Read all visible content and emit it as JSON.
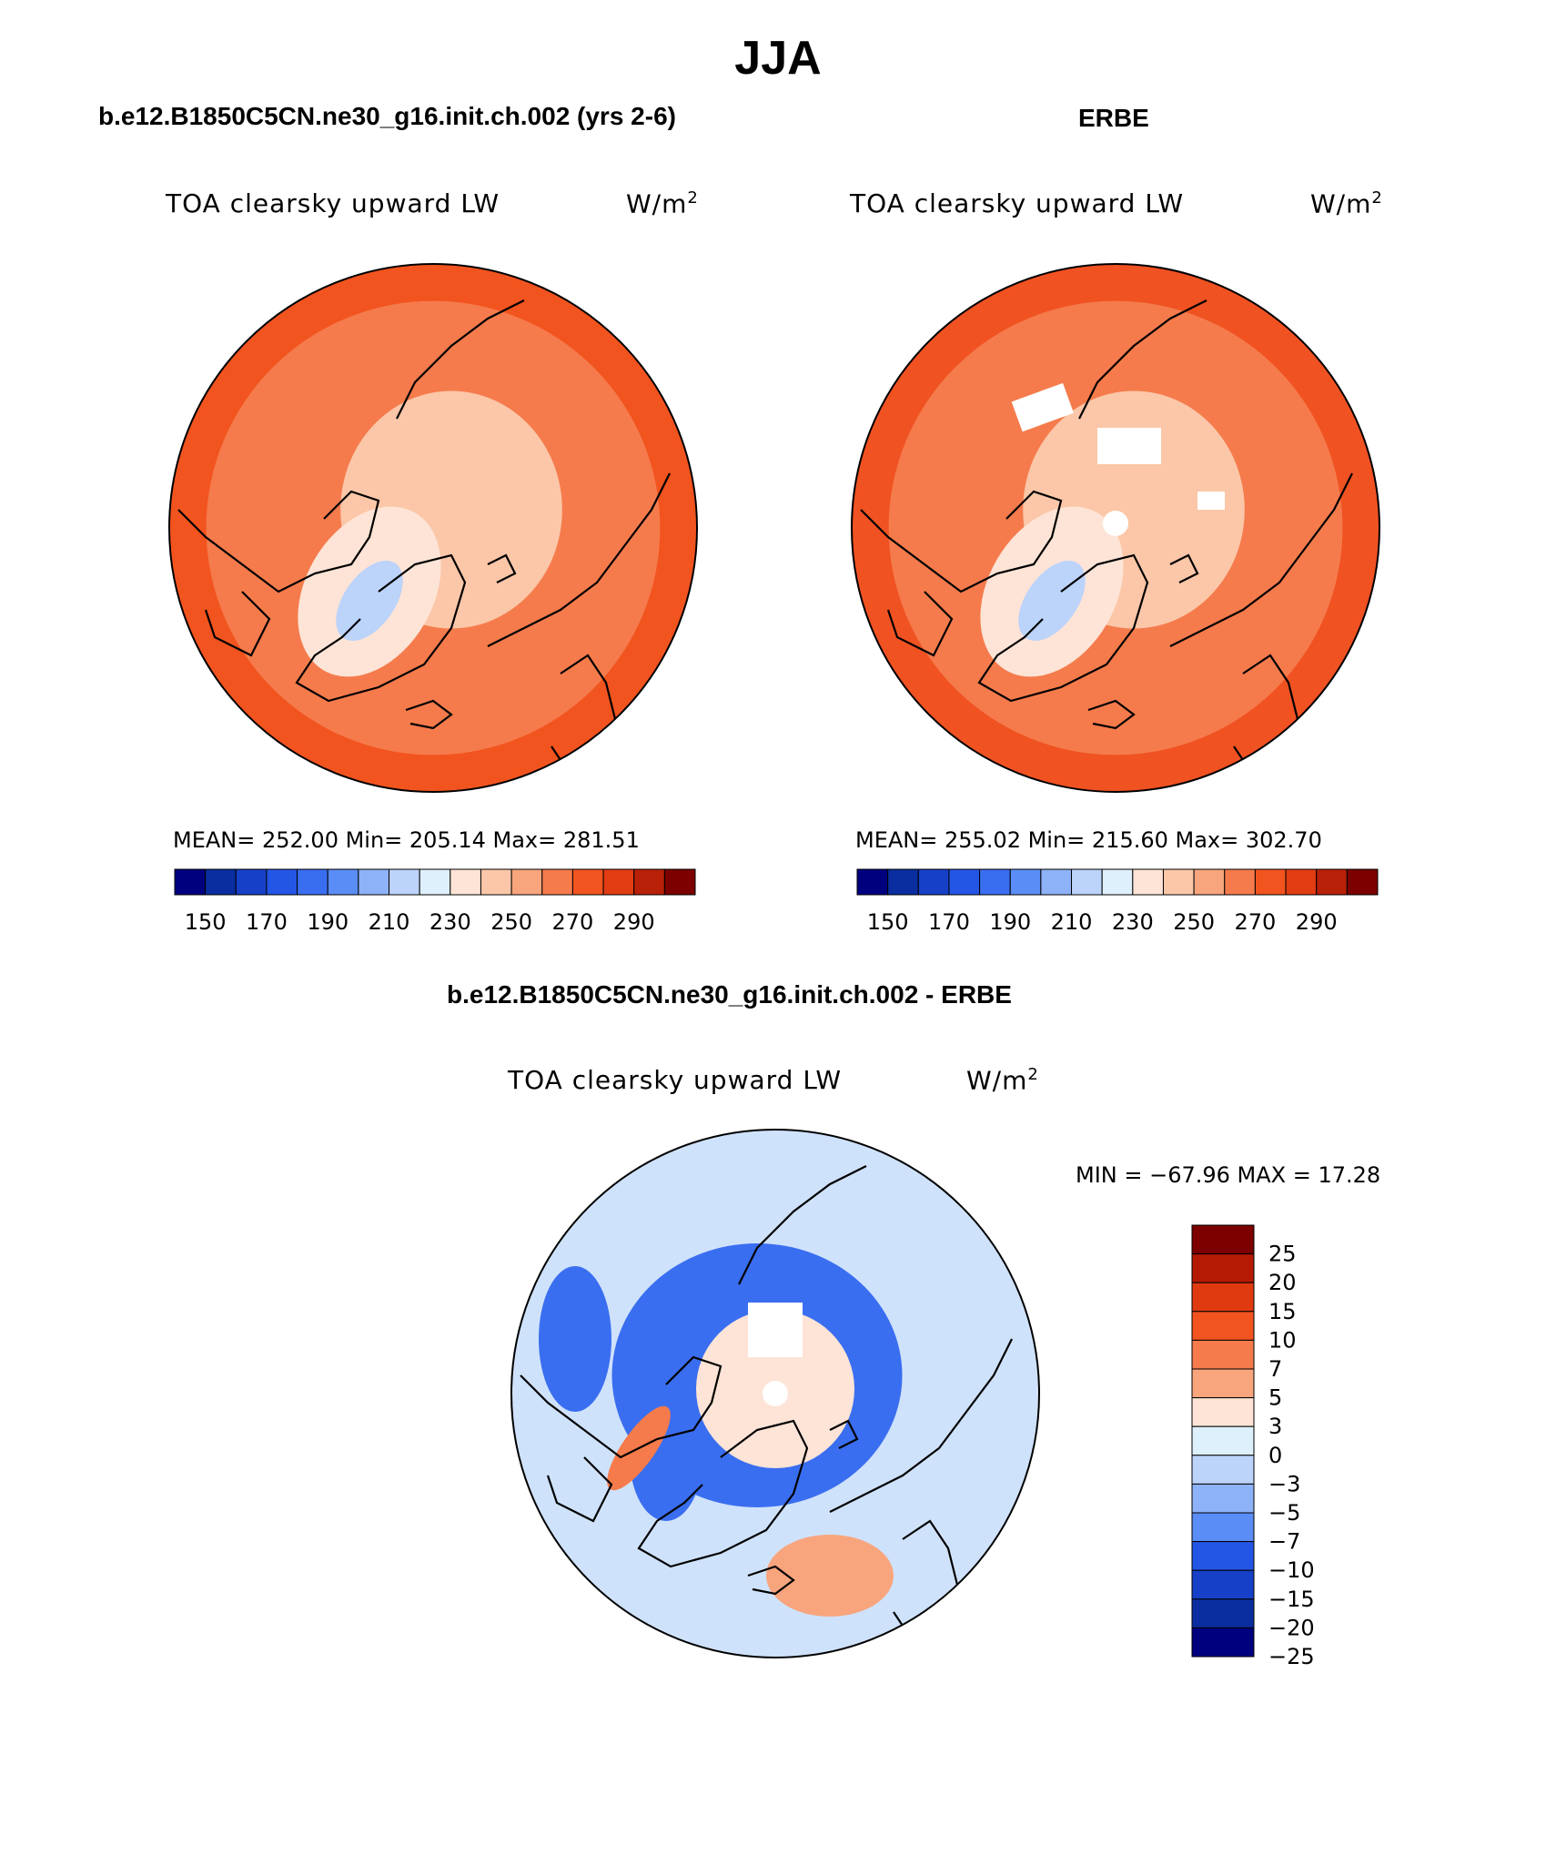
{
  "title": "JJA",
  "panels": [
    {
      "title": "b.e12.B1850C5CN.ne30_g16.init.ch.002 (yrs 2-6)",
      "variable": "TOA clearsky upward LW",
      "units": "W/m",
      "units_exp": "2",
      "stats": {
        "mean": "252.00",
        "min": "205.14",
        "max": "281.51"
      },
      "stats_text": "MEAN= 252.00   Min= 205.14   Max= 281.51"
    },
    {
      "title": "ERBE",
      "variable": "TOA clearsky upward LW",
      "units": "W/m",
      "units_exp": "2",
      "stats": {
        "mean": "255.02",
        "min": "215.60",
        "max": "302.70"
      },
      "stats_text": "MEAN= 255.02   Min= 215.60   Max= 302.70"
    },
    {
      "title": "b.e12.B1850C5CN.ne30_g16.init.ch.002 - ERBE",
      "variable": "TOA clearsky upward LW",
      "units": "W/m",
      "units_exp": "2",
      "stats": {
        "min": "−67.96",
        "max": "17.28"
      },
      "stats_text": "MIN = −67.96 MAX =   17.28"
    }
  ],
  "abs_colorbar": {
    "colors": [
      "#00007f",
      "#0a2ea0",
      "#1740c8",
      "#2456e6",
      "#3a6ef0",
      "#5a8df5",
      "#8eb2f7",
      "#bcd3fa",
      "#def0fb",
      "#fde4d6",
      "#fbc7a8",
      "#f8a57d",
      "#f57b4c",
      "#f2541f",
      "#e23c12",
      "#b82008",
      "#7c0000"
    ],
    "tick_labels": [
      "150",
      "170",
      "190",
      "210",
      "230",
      "250",
      "270",
      "290"
    ]
  },
  "diff_colorbar": {
    "colors": [
      "#7c0000",
      "#b51a04",
      "#e03b10",
      "#f2541f",
      "#f57b4c",
      "#f8a57d",
      "#fde4d6",
      "#def0fb",
      "#bcd3fa",
      "#8eb2f7",
      "#5a8df5",
      "#2456e6",
      "#1740c8",
      "#0a2ea0",
      "#00007f"
    ],
    "tick_labels": [
      "25",
      "20",
      "15",
      "10",
      "7",
      "5",
      "3",
      "0",
      "−3",
      "−5",
      "−7",
      "−10",
      "−15",
      "−20",
      "−25"
    ]
  },
  "map_colors": {
    "ocean_model": "#f2541f",
    "ocean_obs": "#f05222",
    "arctic": "#fbc7a8",
    "greenland_light": "#fde4d6",
    "greenland_blue": "#bcd3fa",
    "coast": "#000000",
    "diff_bg": "#cfe2fb",
    "diff_blue": "#3a6ef0",
    "diff_red": "#f57b4c"
  }
}
